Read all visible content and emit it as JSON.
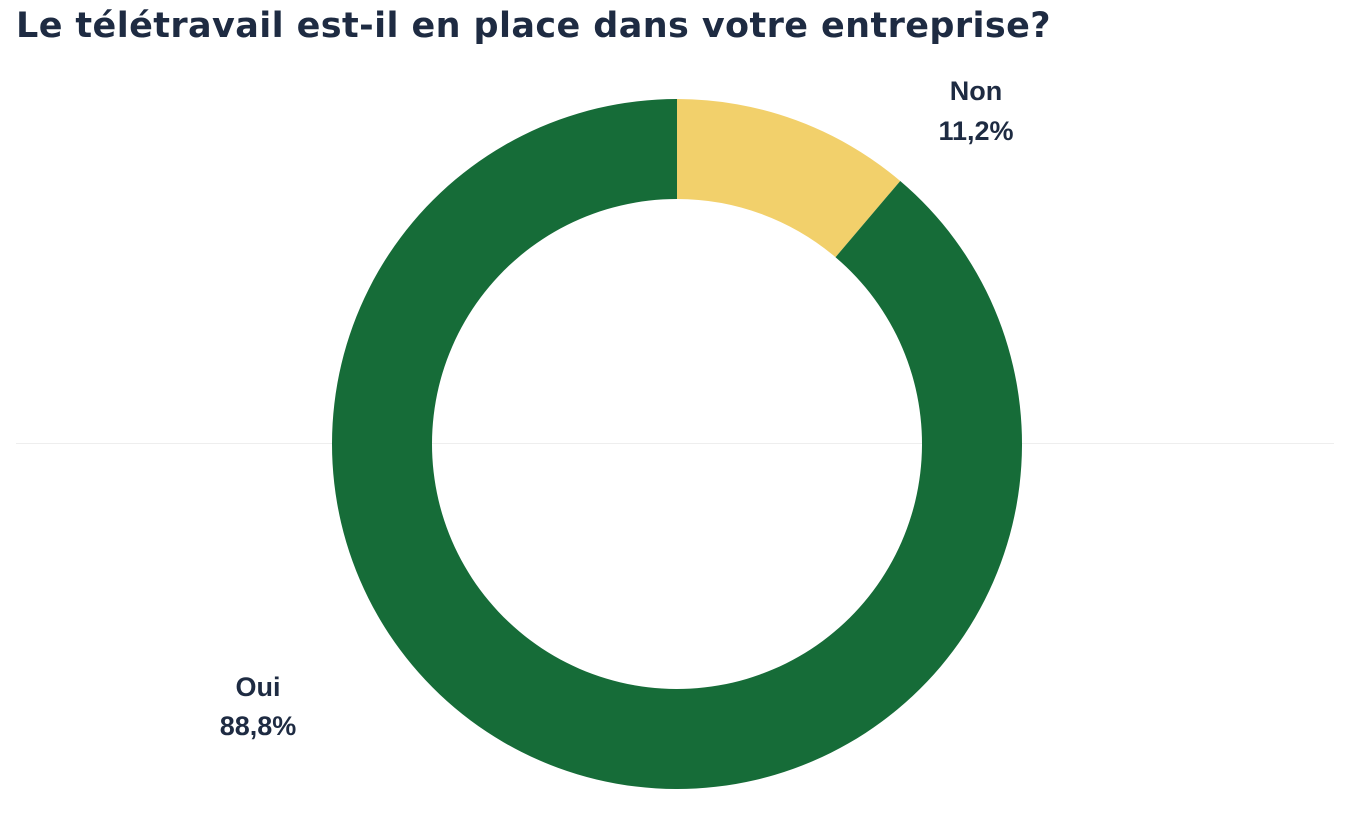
{
  "chart_data": {
    "type": "pie",
    "title": "Le télétravail est-il en place dans votre entreprise?",
    "donut": true,
    "start_angle": "12 o'clock, clockwise",
    "slices": [
      {
        "label": "Non",
        "value": 11.2,
        "value_label": "11,2%",
        "color": "#f2d06b"
      },
      {
        "label": "Oui",
        "value": 88.8,
        "value_label": "88,8%",
        "color": "#166c38"
      }
    ]
  },
  "colors": {
    "title": "#1e2b42",
    "labels": "#1e2b42",
    "background": "#ffffff"
  }
}
